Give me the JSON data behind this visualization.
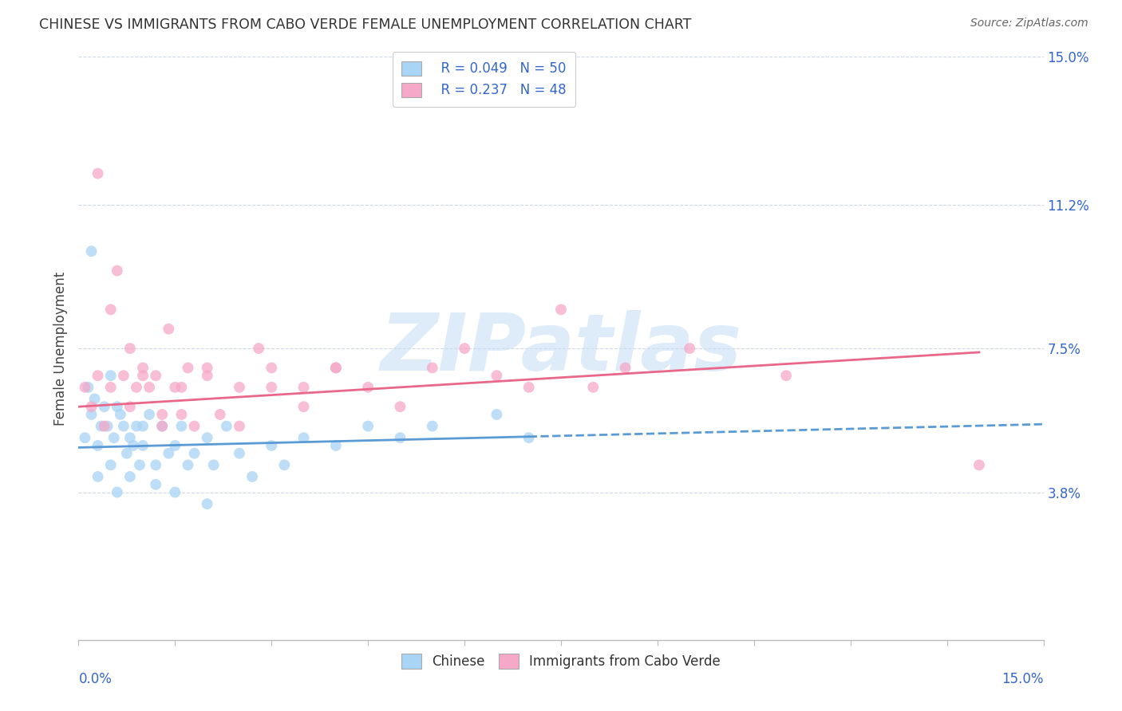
{
  "title": "CHINESE VS IMMIGRANTS FROM CABO VERDE FEMALE UNEMPLOYMENT CORRELATION CHART",
  "source": "Source: ZipAtlas.com",
  "ylabel": "Female Unemployment",
  "y_ticks": [
    0.0,
    3.8,
    7.5,
    11.2,
    15.0
  ],
  "y_tick_labels": [
    "",
    "3.8%",
    "7.5%",
    "11.2%",
    "15.0%"
  ],
  "xlim": [
    0.0,
    15.0
  ],
  "ylim": [
    0.0,
    15.0
  ],
  "legend_r1": "R = 0.049",
  "legend_n1": "N = 50",
  "legend_r2": "R = 0.237",
  "legend_n2": "N = 48",
  "color_chinese": "#a8d4f5",
  "color_cabo": "#f5a8c8",
  "color_trendline_chinese": "#5b9bd5",
  "color_trendline_cabo": "#e8678a",
  "watermark": "ZIPatlas",
  "watermark_color": "#c8dff5",
  "chinese_x": [
    0.1,
    0.15,
    0.2,
    0.25,
    0.3,
    0.35,
    0.4,
    0.45,
    0.5,
    0.55,
    0.6,
    0.65,
    0.7,
    0.75,
    0.8,
    0.85,
    0.9,
    0.95,
    1.0,
    1.1,
    1.2,
    1.3,
    1.4,
    1.5,
    1.6,
    1.7,
    1.8,
    2.0,
    2.1,
    2.3,
    2.5,
    2.7,
    3.0,
    3.2,
    3.5,
    4.0,
    4.5,
    5.0,
    5.5,
    6.5,
    0.2,
    0.3,
    0.5,
    0.6,
    0.8,
    1.0,
    1.2,
    1.5,
    2.0,
    7.0
  ],
  "chinese_y": [
    5.2,
    6.5,
    5.8,
    6.2,
    5.0,
    5.5,
    6.0,
    5.5,
    6.8,
    5.2,
    6.0,
    5.8,
    5.5,
    4.8,
    5.2,
    5.0,
    5.5,
    4.5,
    5.0,
    5.8,
    4.5,
    5.5,
    4.8,
    5.0,
    5.5,
    4.5,
    4.8,
    5.2,
    4.5,
    5.5,
    4.8,
    4.2,
    5.0,
    4.5,
    5.2,
    5.0,
    5.5,
    5.2,
    5.5,
    5.8,
    10.0,
    4.2,
    4.5,
    3.8,
    4.2,
    5.5,
    4.0,
    3.8,
    3.5,
    5.2
  ],
  "cabo_x": [
    0.1,
    0.2,
    0.3,
    0.4,
    0.5,
    0.6,
    0.7,
    0.8,
    0.9,
    1.0,
    1.1,
    1.2,
    1.3,
    1.4,
    1.5,
    1.6,
    1.7,
    1.8,
    2.0,
    2.2,
    2.5,
    2.8,
    3.0,
    3.5,
    4.0,
    4.5,
    5.5,
    6.5,
    7.0,
    8.5,
    9.5,
    0.3,
    0.5,
    0.8,
    1.0,
    1.3,
    1.6,
    2.0,
    2.5,
    3.0,
    3.5,
    4.0,
    5.0,
    6.0,
    7.5,
    8.0,
    11.0,
    14.0
  ],
  "cabo_y": [
    6.5,
    6.0,
    6.8,
    5.5,
    6.5,
    9.5,
    6.8,
    7.5,
    6.5,
    7.0,
    6.5,
    6.8,
    5.8,
    8.0,
    6.5,
    6.5,
    7.0,
    5.5,
    6.8,
    5.8,
    6.5,
    7.5,
    7.0,
    6.5,
    7.0,
    6.5,
    7.0,
    6.8,
    6.5,
    7.0,
    7.5,
    12.0,
    8.5,
    6.0,
    6.8,
    5.5,
    5.8,
    7.0,
    5.5,
    6.5,
    6.0,
    7.0,
    6.0,
    7.5,
    8.5,
    6.5,
    6.8,
    4.5
  ],
  "trendline_chinese_x0": 0.0,
  "trendline_chinese_y0": 4.95,
  "trendline_chinese_x1": 10.0,
  "trendline_chinese_y1": 5.35,
  "trendline_cabo_x0": 0.0,
  "trendline_cabo_y0": 6.0,
  "trendline_cabo_x1": 15.0,
  "trendline_cabo_y1": 7.5,
  "chinese_data_xmax": 7.0,
  "cabo_data_xmax": 14.0
}
